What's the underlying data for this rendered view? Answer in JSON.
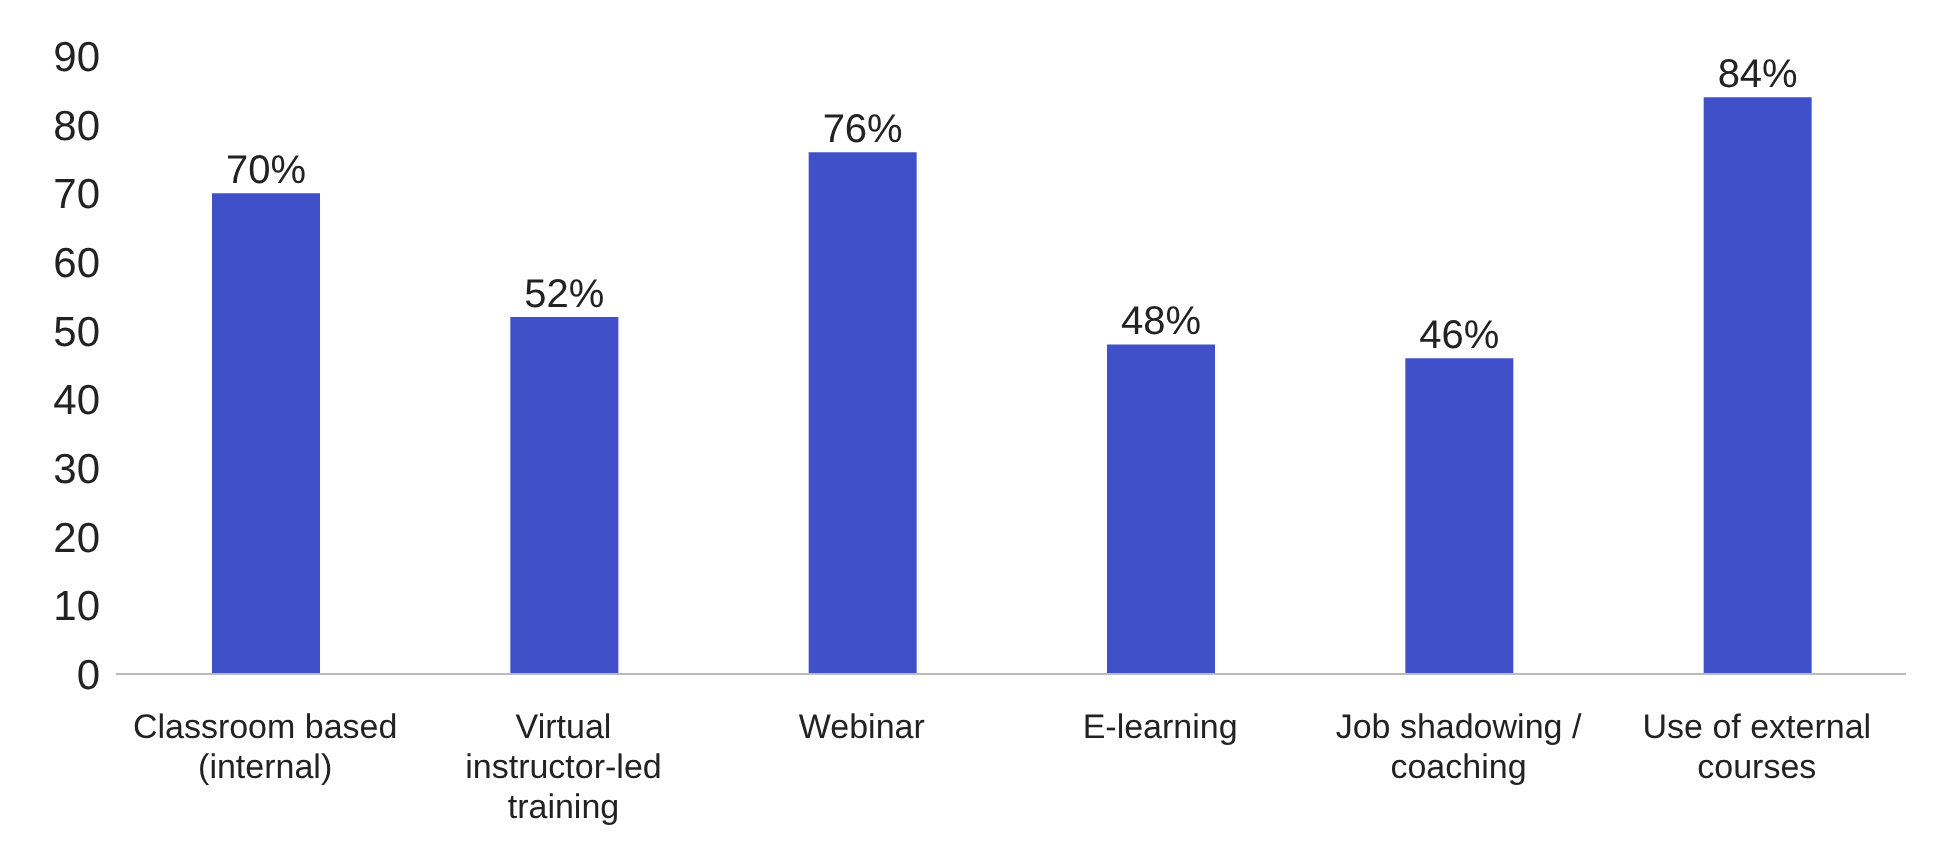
{
  "chart_data": {
    "type": "bar",
    "categories": [
      "Classroom based (internal)",
      "Virtual instructor-led training",
      "Webinar",
      "E-learning",
      "Job shadowing / coaching",
      "Use of external courses"
    ],
    "values": [
      70,
      52,
      76,
      48,
      46,
      84
    ],
    "value_labels": [
      "70%",
      "52%",
      "76%",
      "48%",
      "46%",
      "84%"
    ],
    "color": "#4050c8",
    "ylim": [
      0,
      90
    ],
    "yticks": [
      0,
      10,
      20,
      30,
      40,
      50,
      60,
      70,
      80,
      90
    ],
    "grid": false,
    "legend": false
  }
}
